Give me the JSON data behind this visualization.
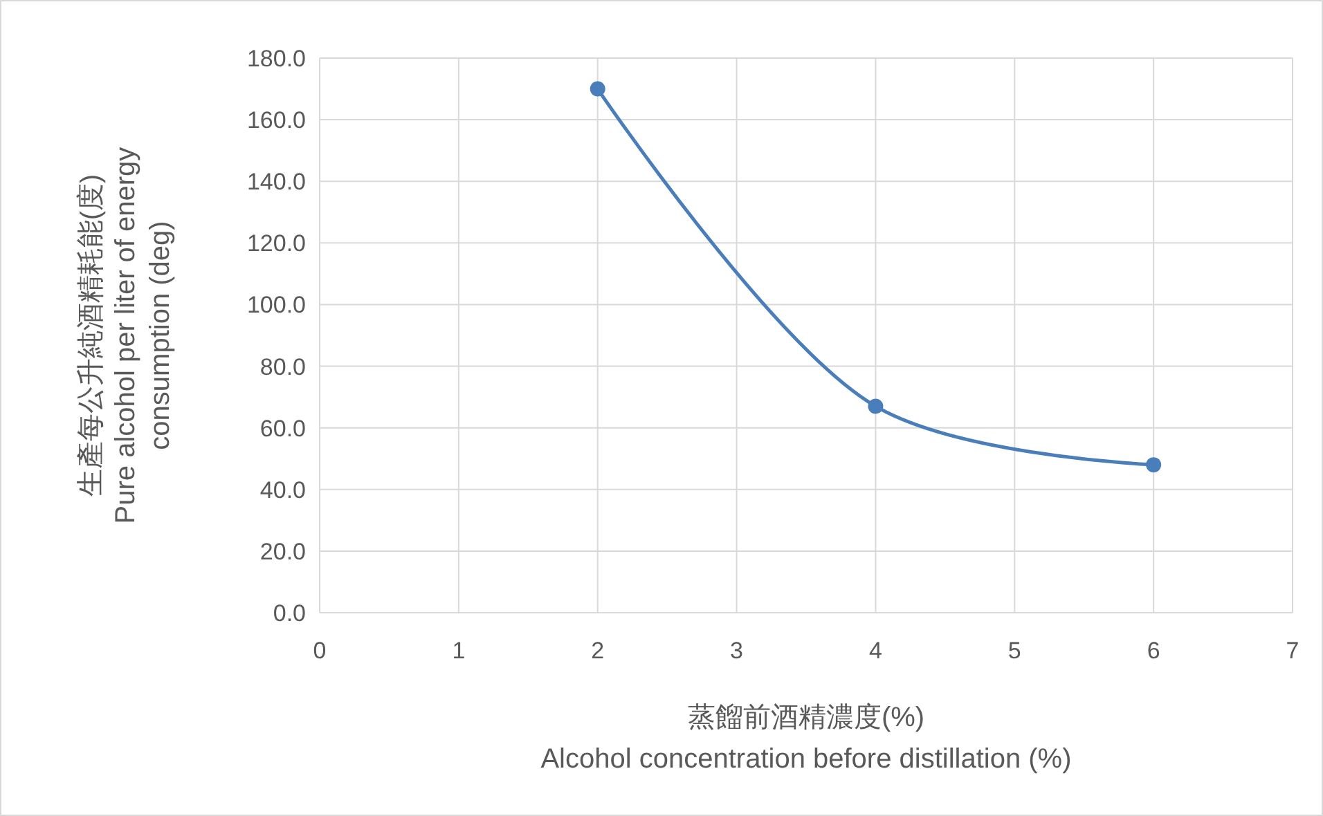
{
  "chart_data": {
    "type": "line",
    "xlabel": "蒸餾前酒精濃度(%)\nAlcohol concentration before distillation (%)",
    "ylabel": "生產每公升純酒精耗能(度)\nPure alcohol per liter of energy\nconsumption (deg)",
    "x": [
      2,
      4,
      6
    ],
    "series": [
      {
        "color": "#4a7ebb",
        "values": [
          170,
          67,
          48
        ]
      }
    ],
    "xlim": [
      0,
      7
    ],
    "xticks": [
      0,
      1,
      2,
      3,
      4,
      5,
      6,
      7
    ],
    "ylim": [
      0,
      180
    ],
    "yticks": [
      {
        "value": 0,
        "label": "0.0"
      },
      {
        "value": 20,
        "label": "20.0"
      },
      {
        "value": 40,
        "label": "40.0"
      },
      {
        "value": 60,
        "label": "60.0"
      },
      {
        "value": 80,
        "label": "80.0"
      },
      {
        "value": 100,
        "label": "100.0"
      },
      {
        "value": 120,
        "label": "120.0"
      },
      {
        "value": 140,
        "label": "140.0"
      },
      {
        "value": 160,
        "label": "160.0"
      },
      {
        "value": 180,
        "label": "180.0"
      }
    ],
    "grid": true,
    "marker": "circle",
    "line_style": "solid"
  }
}
